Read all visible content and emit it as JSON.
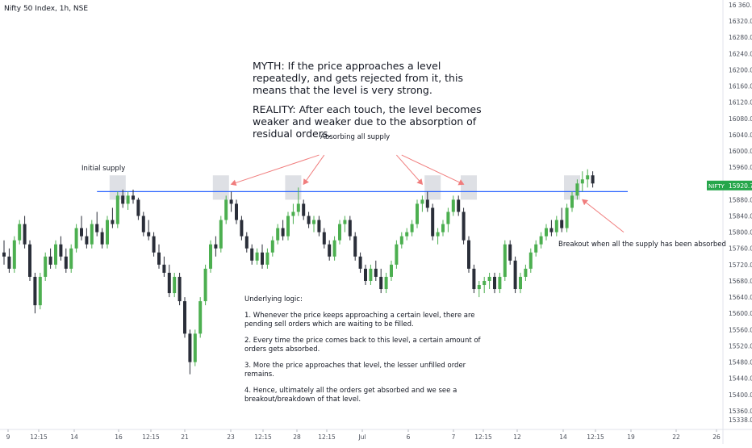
{
  "chart_data": {
    "type": "candlestick",
    "title": "Nifty 50 Index, 1h, NSE",
    "ylim": [
      15330,
      16360
    ],
    "y_ticks": [
      16360,
      16320,
      16280,
      16240,
      16200,
      16160,
      16120,
      16080,
      16040,
      16000,
      15960,
      15920,
      15880,
      15840,
      15800,
      15760,
      15720,
      15680,
      15640,
      15600,
      15560,
      15520,
      15480,
      15440,
      15400,
      15360
    ],
    "y_tick_labels": [
      "16360.00",
      "16320.00",
      "16280.00",
      "16240.00",
      "16200.00",
      "16160.00",
      "16120.00",
      "16080.00",
      "16040.00",
      "16000.00",
      "15960.00",
      "15920.00",
      "15880.00",
      "15840.00",
      "15800.00",
      "15760.00",
      "15720.00",
      "15680.00",
      "15640.00",
      "15600.00",
      "15560.00",
      "15520.00",
      "15480.00",
      "15440.00",
      "15400.00",
      "15360.00"
    ],
    "y_tick_labels_display": [
      "16 360.00",
      "16320.00",
      "16280.00",
      "16240.00",
      "16200.00",
      "16160.00",
      "16120.00",
      "16080.00",
      "16040.00",
      "16000.00",
      "15960.00",
      "15920.00",
      "15880.00",
      "15840.00",
      "15800.00",
      "15760.00",
      "15720.00",
      "15680.00",
      "15640.00",
      "15600.00",
      "15560.00",
      "15520.00",
      "15480.00",
      "15440.00",
      "15400.00",
      "15360.00",
      "15338.00"
    ],
    "x_tick_labels": [
      "9",
      "12:15",
      "14",
      "16",
      "12:15",
      "21",
      "23",
      "12:15",
      "28",
      "12:15",
      "Jul",
      "6",
      "7",
      "12:15",
      "12",
      "14",
      "12:15",
      "19",
      "22",
      "26"
    ],
    "last_price_label": "15920.70",
    "last_price_tag": "NIFTY",
    "resistance_level": 15900,
    "candles": [
      [
        15750,
        15780,
        15720,
        15740
      ],
      [
        15740,
        15760,
        15700,
        15710
      ],
      [
        15710,
        15790,
        15700,
        15780
      ],
      [
        15780,
        15830,
        15770,
        15820
      ],
      [
        15820,
        15840,
        15760,
        15770
      ],
      [
        15770,
        15780,
        15680,
        15690
      ],
      [
        15690,
        15700,
        15600,
        15620
      ],
      [
        15620,
        15700,
        15610,
        15690
      ],
      [
        15690,
        15750,
        15680,
        15740
      ],
      [
        15740,
        15760,
        15710,
        15720
      ],
      [
        15720,
        15780,
        15710,
        15770
      ],
      [
        15770,
        15790,
        15730,
        15740
      ],
      [
        15740,
        15760,
        15700,
        15710
      ],
      [
        15710,
        15770,
        15700,
        15760
      ],
      [
        15760,
        15820,
        15750,
        15810
      ],
      [
        15810,
        15840,
        15780,
        15790
      ],
      [
        15790,
        15810,
        15760,
        15770
      ],
      [
        15770,
        15830,
        15760,
        15820
      ],
      [
        15820,
        15850,
        15790,
        15800
      ],
      [
        15800,
        15810,
        15760,
        15770
      ],
      [
        15770,
        15840,
        15760,
        15830
      ],
      [
        15830,
        15860,
        15810,
        15820
      ],
      [
        15820,
        15900,
        15810,
        15890
      ],
      [
        15890,
        15905,
        15860,
        15870
      ],
      [
        15870,
        15900,
        15855,
        15890
      ],
      [
        15890,
        15905,
        15870,
        15880
      ],
      [
        15880,
        15885,
        15830,
        15840
      ],
      [
        15840,
        15850,
        15790,
        15800
      ],
      [
        15800,
        15830,
        15780,
        15790
      ],
      [
        15790,
        15800,
        15740,
        15750
      ],
      [
        15750,
        15770,
        15710,
        15720
      ],
      [
        15720,
        15740,
        15690,
        15700
      ],
      [
        15700,
        15720,
        15640,
        15650
      ],
      [
        15650,
        15700,
        15640,
        15690
      ],
      [
        15690,
        15700,
        15620,
        15630
      ],
      [
        15630,
        15640,
        15540,
        15550
      ],
      [
        15550,
        15560,
        15450,
        15480
      ],
      [
        15480,
        15560,
        15470,
        15550
      ],
      [
        15550,
        15640,
        15540,
        15630
      ],
      [
        15630,
        15720,
        15620,
        15710
      ],
      [
        15710,
        15780,
        15700,
        15770
      ],
      [
        15770,
        15790,
        15740,
        15760
      ],
      [
        15760,
        15840,
        15750,
        15830
      ],
      [
        15830,
        15890,
        15820,
        15880
      ],
      [
        15880,
        15900,
        15850,
        15870
      ],
      [
        15870,
        15880,
        15820,
        15830
      ],
      [
        15830,
        15840,
        15780,
        15790
      ],
      [
        15790,
        15800,
        15750,
        15760
      ],
      [
        15760,
        15770,
        15720,
        15730
      ],
      [
        15730,
        15760,
        15720,
        15750
      ],
      [
        15750,
        15770,
        15710,
        15720
      ],
      [
        15720,
        15760,
        15710,
        15750
      ],
      [
        15750,
        15790,
        15740,
        15780
      ],
      [
        15780,
        15820,
        15770,
        15810
      ],
      [
        15810,
        15830,
        15780,
        15790
      ],
      [
        15790,
        15850,
        15780,
        15840
      ],
      [
        15840,
        15870,
        15820,
        15850
      ],
      [
        15850,
        15910,
        15840,
        15870
      ],
      [
        15870,
        15880,
        15830,
        15840
      ],
      [
        15840,
        15850,
        15810,
        15820
      ],
      [
        15820,
        15840,
        15800,
        15830
      ],
      [
        15830,
        15840,
        15790,
        15800
      ],
      [
        15800,
        15810,
        15760,
        15770
      ],
      [
        15770,
        15780,
        15730,
        15740
      ],
      [
        15740,
        15790,
        15730,
        15780
      ],
      [
        15780,
        15830,
        15770,
        15820
      ],
      [
        15820,
        15840,
        15800,
        15830
      ],
      [
        15830,
        15840,
        15780,
        15790
      ],
      [
        15790,
        15800,
        15730,
        15740
      ],
      [
        15740,
        15750,
        15700,
        15710
      ],
      [
        15710,
        15720,
        15670,
        15680
      ],
      [
        15680,
        15720,
        15670,
        15710
      ],
      [
        15710,
        15730,
        15680,
        15690
      ],
      [
        15690,
        15710,
        15650,
        15660
      ],
      [
        15660,
        15700,
        15650,
        15690
      ],
      [
        15690,
        15730,
        15680,
        15720
      ],
      [
        15720,
        15780,
        15710,
        15770
      ],
      [
        15770,
        15800,
        15760,
        15790
      ],
      [
        15790,
        15810,
        15780,
        15800
      ],
      [
        15800,
        15830,
        15790,
        15820
      ],
      [
        15820,
        15880,
        15810,
        15870
      ],
      [
        15870,
        15890,
        15850,
        15880
      ],
      [
        15880,
        15900,
        15850,
        15860
      ],
      [
        15860,
        15870,
        15780,
        15790
      ],
      [
        15790,
        15810,
        15770,
        15800
      ],
      [
        15800,
        15830,
        15790,
        15820
      ],
      [
        15820,
        15860,
        15800,
        15850
      ],
      [
        15850,
        15890,
        15840,
        15880
      ],
      [
        15880,
        15890,
        15840,
        15850
      ],
      [
        15850,
        15860,
        15770,
        15780
      ],
      [
        15780,
        15790,
        15700,
        15710
      ],
      [
        15710,
        15720,
        15650,
        15660
      ],
      [
        15660,
        15680,
        15640,
        15670
      ],
      [
        15670,
        15690,
        15650,
        15680
      ],
      [
        15680,
        15700,
        15660,
        15690
      ],
      [
        15690,
        15700,
        15650,
        15660
      ],
      [
        15660,
        15700,
        15650,
        15690
      ],
      [
        15690,
        15780,
        15680,
        15770
      ],
      [
        15770,
        15780,
        15720,
        15730
      ],
      [
        15730,
        15740,
        15650,
        15660
      ],
      [
        15660,
        15700,
        15650,
        15690
      ],
      [
        15690,
        15720,
        15680,
        15710
      ],
      [
        15710,
        15760,
        15700,
        15750
      ],
      [
        15750,
        15780,
        15740,
        15770
      ],
      [
        15770,
        15800,
        15760,
        15790
      ],
      [
        15790,
        15820,
        15780,
        15810
      ],
      [
        15810,
        15830,
        15790,
        15800
      ],
      [
        15800,
        15840,
        15790,
        15830
      ],
      [
        15830,
        15860,
        15800,
        15810
      ],
      [
        15810,
        15870,
        15800,
        15860
      ],
      [
        15860,
        15900,
        15850,
        15890
      ],
      [
        15890,
        15930,
        15880,
        15920
      ],
      [
        15920,
        15950,
        15900,
        15930
      ],
      [
        15930,
        15955,
        15910,
        15940
      ],
      [
        15940,
        15950,
        15910,
        15920
      ]
    ],
    "candle_x_start": 5,
    "candle_x_step": 6.4,
    "highlight_candle_indices": [
      22,
      42,
      56,
      83,
      90,
      110
    ],
    "arrows": [
      {
        "from_price": 15990,
        "to_price": 15918,
        "from_index": 61,
        "to_index": 44
      },
      {
        "from_price": 15990,
        "to_price": 15918,
        "from_index": 62,
        "to_index": 58
      },
      {
        "from_price": 15990,
        "to_price": 15918,
        "from_index": 76,
        "to_index": 81
      },
      {
        "from_price": 15990,
        "to_price": 15918,
        "from_index": 77,
        "to_index": 89
      },
      {
        "from_price": 15800,
        "to_price": 15880,
        "from_index": 120,
        "to_index": 112
      }
    ],
    "annotations": {
      "initial_supply": "Initial supply",
      "absorbing": "Absorbing all supply",
      "breakout": "Breakout when all the supply has been absorbed"
    },
    "grid": false,
    "legend": "none"
  },
  "notes": {
    "myth": "MYTH: If the price approaches a level repeatedly, and gets rejected from it, this means that the level is very strong.",
    "reality": "REALITY: After each touch, the level becomes weaker and weaker due to the absorption of residual orders.",
    "logic_title": "Underlying logic:",
    "logic_1": "1. Whenever the price keeps approaching a certain level, there are pending sell orders which are waiting to be filled.",
    "logic_2": "2. Every time the price comes back to this level, a certain amount of orders gets absorbed.",
    "logic_3": "3. More the price approaches that level, the lesser unfilled order remains.",
    "logic_4": "4. Hence, ultimately all the orders get absorbed and we see a breakout/breakdown of that level."
  },
  "colors": {
    "up": "#4caf50",
    "down": "#2a2e39",
    "level": "#2962ff",
    "arrow": "#f07d7d",
    "highlight": "#c8ccd3",
    "price_tag": "#26a64b"
  }
}
